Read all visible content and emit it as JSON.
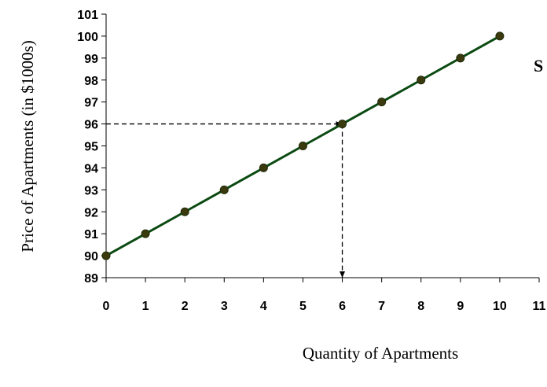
{
  "chart_data": {
    "type": "line",
    "title": "",
    "xlabel": "Quantity of Apartments",
    "ylabel": "Price of Apartments (in $1000s)",
    "xlim": [
      0,
      11
    ],
    "ylim": [
      89,
      101
    ],
    "x_ticks": [
      "0",
      "1",
      "2",
      "3",
      "4",
      "5",
      "6",
      "7",
      "8",
      "9",
      "10",
      "11"
    ],
    "y_ticks": [
      "89",
      "90",
      "91",
      "92",
      "93",
      "94",
      "95",
      "96",
      "97",
      "98",
      "99",
      "100",
      "101"
    ],
    "grid": false,
    "series": [
      {
        "label": "S",
        "x": [
          0,
          1,
          2,
          3,
          4,
          5,
          6,
          7,
          8,
          9,
          10
        ],
        "y": [
          90,
          91,
          92,
          93,
          94,
          95,
          96,
          97,
          98,
          99,
          100
        ],
        "color": "#0b4a12",
        "marker_color": "#3b3a0e"
      }
    ],
    "annotations": [
      {
        "type": "dashed-arrow",
        "from": [
          0,
          96
        ],
        "to": [
          6,
          96
        ]
      },
      {
        "type": "dashed-arrow",
        "from": [
          6,
          96
        ],
        "to": [
          6,
          89
        ]
      }
    ]
  }
}
